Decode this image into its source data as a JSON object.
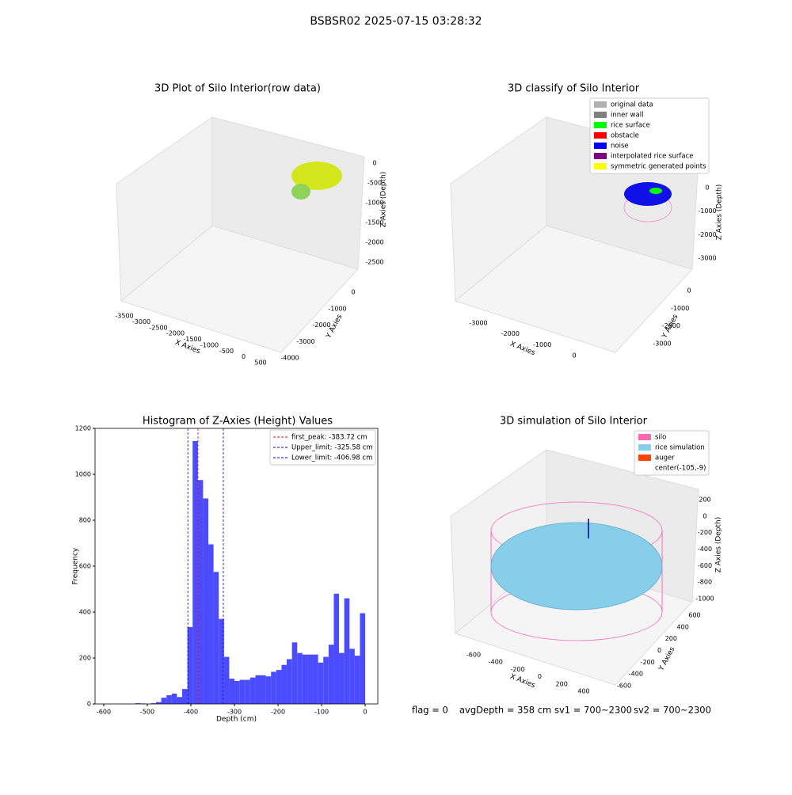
{
  "title": "BSBSR02 2025-07-15 03:28:32",
  "panels": [
    {
      "title": "3D Plot of Silo Interior(row data)",
      "xlabel": "X Axies",
      "ylabel": "Y Axies",
      "zlabel": "Z Axies (Depth)",
      "xticks": [
        -3500,
        -3000,
        -2500,
        -2000,
        -1500,
        -1000,
        -500,
        0,
        500
      ],
      "yticks": [
        0,
        -1000,
        -2000,
        -3000,
        -4000
      ],
      "zticks": [
        0,
        -500,
        -1000,
        -1500,
        -2000,
        -2500
      ]
    },
    {
      "title": "3D classify of Silo Interior",
      "xlabel": "X Axies",
      "ylabel": "Y Axies",
      "zlabel": "Z Axies (Depth)",
      "xticks": [
        -3000,
        -2000,
        -1000,
        0
      ],
      "yticks": [
        0,
        -1000,
        -2000,
        -3000
      ],
      "zticks": [
        0,
        -1000,
        -2000,
        -3000
      ],
      "legend": [
        {
          "name": "original data",
          "color": "#b0b0b0"
        },
        {
          "name": "inner wall",
          "color": "#808080"
        },
        {
          "name": "rice surface",
          "color": "#00ff00"
        },
        {
          "name": "obstacle",
          "color": "#ff0000"
        },
        {
          "name": "noise",
          "color": "#0000ff"
        },
        {
          "name": "interpolated rice surface",
          "color": "#800080"
        },
        {
          "name": "symmetric generated points",
          "color": "#ffff00"
        }
      ]
    },
    {
      "title": "3D simulation of Silo Interior",
      "xlabel": "X Axies",
      "ylabel": "Y Axies",
      "zlabel": "Z Axies (Depth)",
      "xticks": [
        -600,
        -400,
        -200,
        0,
        200,
        400
      ],
      "yticks": [
        600,
        400,
        200,
        0,
        -200,
        -400,
        -600
      ],
      "zticks": [
        200,
        0,
        -200,
        -400,
        -600,
        -800,
        -1000
      ],
      "legend": [
        {
          "name": "silo",
          "color": "#ff69b4"
        },
        {
          "name": "rice simulation",
          "color": "#87ceeb"
        },
        {
          "name": "auger",
          "color": "#ff4500"
        },
        {
          "name": "center(-105,-9)",
          "color": "#ffffff"
        }
      ]
    }
  ],
  "chart_data": {
    "type": "histogram",
    "title": "Histogram of Z-Axies (Height) Values",
    "xlabel": "Depth (cm)",
    "ylabel": "Frequency",
    "color": "#4b4bff",
    "bins": [
      -528,
      -516,
      -504,
      -492,
      -480,
      -468,
      -456,
      -444,
      -432,
      -420,
      -408,
      -396,
      -384,
      -372,
      -360,
      -348,
      -336,
      -324,
      -312,
      -300,
      -288,
      -276,
      -264,
      -252,
      -240,
      -228,
      -216,
      -204,
      -192,
      -180,
      -168,
      -156,
      -144,
      -132,
      -120,
      -108,
      -96,
      -84,
      -72,
      -60,
      -48,
      -36,
      -24,
      -12,
      0
    ],
    "values": [
      3,
      2,
      0,
      3,
      8,
      27,
      38,
      45,
      30,
      65,
      335,
      1145,
      975,
      895,
      695,
      575,
      370,
      205,
      110,
      100,
      105,
      105,
      115,
      125,
      125,
      120,
      140,
      148,
      170,
      195,
      268,
      222,
      215,
      215,
      215,
      180,
      205,
      258,
      480,
      222,
      460,
      240,
      210,
      395
    ],
    "xlim": [
      -620,
      29
    ],
    "ylim": [
      0,
      1200
    ],
    "xticks": [
      -600,
      -500,
      -400,
      -300,
      -200,
      -100,
      0
    ],
    "yticks": [
      0,
      200,
      400,
      600,
      800,
      1000,
      1200
    ],
    "vlines": [
      {
        "label": "first_peak: -383.72 cm",
        "value": -383.72,
        "color": "#ff0000"
      },
      {
        "label": "Upper_limit: -325.58 cm",
        "value": -325.58,
        "color": "#0000ff"
      },
      {
        "label": "Lower_limit: -406.98 cm",
        "value": -406.98,
        "color": "#0000ff"
      }
    ]
  },
  "footer": [
    "flag = 0",
    "avgDepth = 358 cm",
    "sv1 = 700~2300",
    "sv2 = 700~2300"
  ]
}
